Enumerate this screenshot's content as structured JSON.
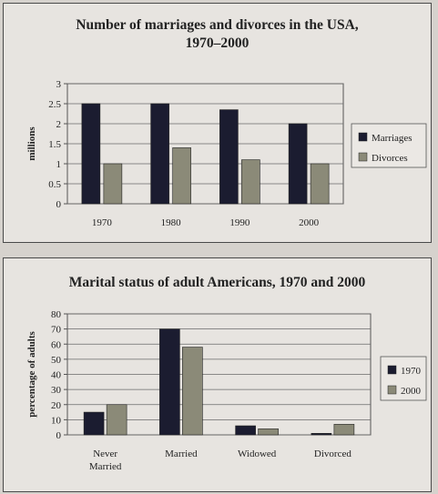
{
  "chart_data": [
    {
      "type": "bar",
      "title_line1": "Number of marriages and divorces in the USA,",
      "title_line2": "1970–2000",
      "xlabel": "",
      "ylabel": "millions",
      "ylim": [
        0,
        3
      ],
      "yticks": [
        "0",
        "0.5",
        "1",
        "1.5",
        "2",
        "2.5",
        "3"
      ],
      "categories": [
        "1970",
        "1980",
        "1990",
        "2000"
      ],
      "series": [
        {
          "name": "Marriages",
          "values": [
            2.5,
            2.5,
            2.35,
            2.0
          ],
          "color": "#1b1c30"
        },
        {
          "name": "Divorces",
          "values": [
            1.0,
            1.4,
            1.1,
            1.0
          ],
          "color": "#8b8a78"
        }
      ],
      "legend": "right",
      "grid": true
    },
    {
      "type": "bar",
      "title": "Marital status of adult Americans, 1970 and 2000",
      "xlabel": "",
      "ylabel": "percentage of adults",
      "ylim": [
        0,
        80
      ],
      "yticks": [
        "0",
        "10",
        "20",
        "30",
        "40",
        "50",
        "60",
        "70",
        "80"
      ],
      "categories": [
        [
          "Never",
          "Married"
        ],
        [
          "Married"
        ],
        [
          "Widowed"
        ],
        [
          "Divorced"
        ]
      ],
      "series": [
        {
          "name": "1970",
          "values": [
            15,
            70,
            6,
            1
          ],
          "color": "#1b1c30"
        },
        {
          "name": "2000",
          "values": [
            20,
            58,
            4,
            7
          ],
          "color": "#8b8a78"
        }
      ],
      "legend": "right",
      "grid": true
    }
  ]
}
